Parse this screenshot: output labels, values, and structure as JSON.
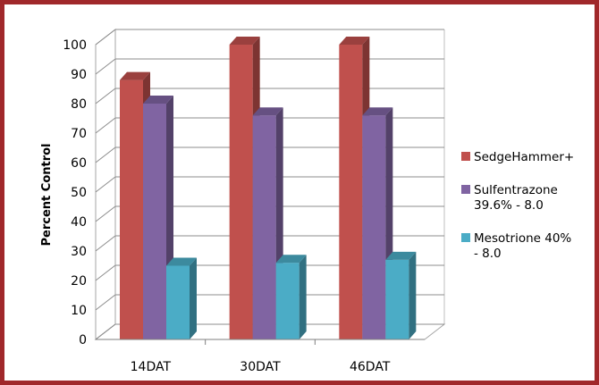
{
  "chart_data": {
    "type": "bar",
    "title": "",
    "xlabel": "",
    "ylabel": "Percent Control",
    "ylim": [
      0,
      100
    ],
    "yticks": [
      0,
      10,
      20,
      30,
      40,
      50,
      60,
      70,
      80,
      90,
      100
    ],
    "categories": [
      "14DAT",
      "30DAT",
      "46DAT"
    ],
    "series": [
      {
        "name": "SedgeHammer+",
        "values": [
          88,
          100,
          100
        ],
        "color": "#c0504d"
      },
      {
        "name": "Sulfentrazone 39.6% - 8.0",
        "legend_lines": [
          "Sulfentrazone",
          "39.6% - 8.0"
        ],
        "values": [
          80,
          76,
          76
        ],
        "color": "#8064a2"
      },
      {
        "name": "Mesotrione 40% - 8.0",
        "legend_lines": [
          "Mesotrione 40%",
          "- 8.0"
        ],
        "values": [
          25,
          26,
          27
        ],
        "color": "#4bacc6"
      }
    ],
    "grid": true,
    "legend_position": "right",
    "style": "3d-clustered-column"
  },
  "frame_color": "#a0282b"
}
